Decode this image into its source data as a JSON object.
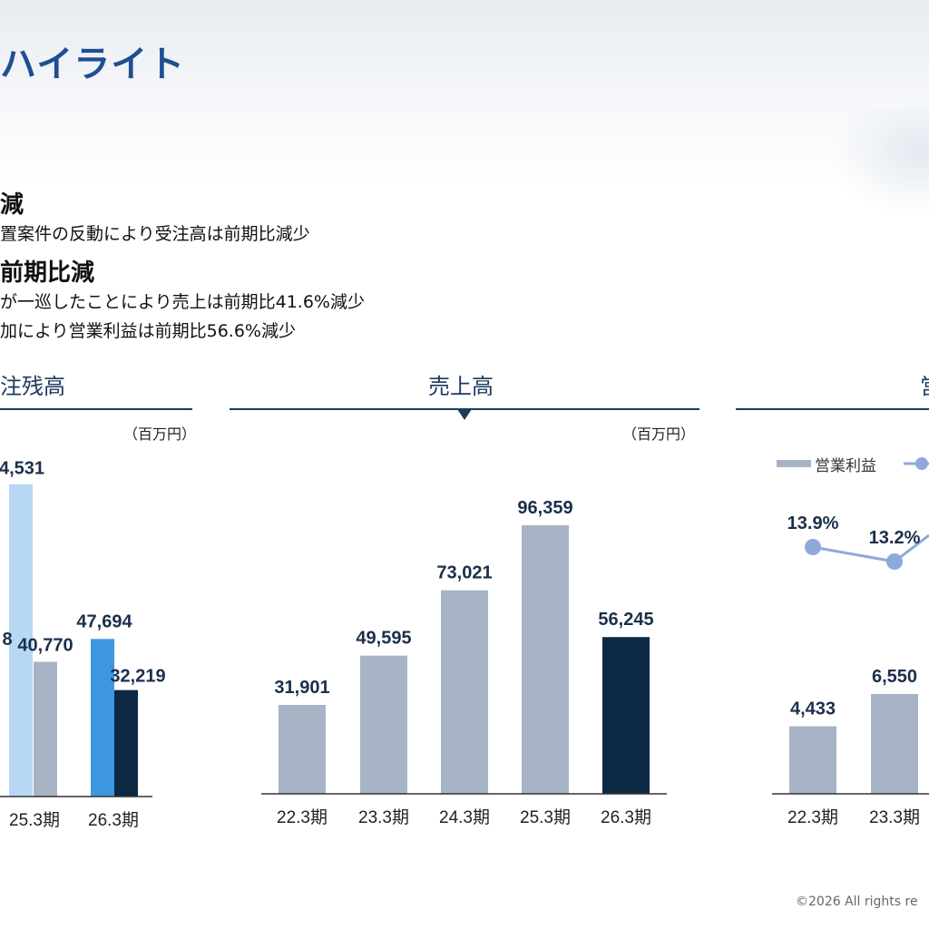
{
  "page": {
    "title": "ハイライト",
    "section1": {
      "heading": "減",
      "bullet": "置案件の反動により受注高は前期比減少"
    },
    "section2": {
      "heading": "前期比減",
      "bullets": [
        "が一巡したことにより売上は前期比41.6%減少",
        "加により営業利益は前期比56.6%減少"
      ]
    },
    "copyright": "©2026 All rights re"
  },
  "panels": {
    "left": {
      "title": "注残高",
      "unit": "（百万円）"
    },
    "middle": {
      "title": "売上高",
      "unit": "（百万円）"
    },
    "right": {
      "title": "営",
      "legend_bar": "営業利益"
    }
  },
  "colors": {
    "gray_bar": "#a7b4c5",
    "navy_bar": "#0b2942",
    "light_blue_bar": "#b7d7f5",
    "blue_bar": "#3f96e0",
    "line_series": "#8ea9db",
    "title_blue": "#1f4f93",
    "label_text": "#1b2f4a"
  },
  "chart_data": [
    {
      "type": "bar",
      "title": "注残高",
      "unit": "（百万円）",
      "categories": [
        "25.3期",
        "26.3期"
      ],
      "series": [
        {
          "values": [
            null,
            47694
          ],
          "color": "#b7d7f5"
        },
        {
          "values": [
            40770,
            32219
          ],
          "color": "#a7b4c5"
        }
      ],
      "partial_labels": [
        "4,531",
        "8"
      ],
      "partial_values": [
        94531,
        null
      ],
      "ylim": [
        0,
        100000
      ]
    },
    {
      "type": "bar",
      "title": "売上高",
      "unit": "（百万円）",
      "categories": [
        "22.3期",
        "23.3期",
        "24.3期",
        "25.3期",
        "26.3期"
      ],
      "values": [
        31901,
        49595,
        73021,
        96359,
        56245
      ],
      "ylim": [
        0,
        100000
      ]
    },
    {
      "type": "bar",
      "title": "営",
      "categories": [
        "22.3期",
        "23.3期"
      ],
      "series": [
        {
          "name": "営業利益",
          "values": [
            4433,
            6550
          ]
        }
      ],
      "line_values_pct": [
        13.9,
        13.2
      ],
      "line_labels": [
        "13.9%",
        "13.2%"
      ],
      "ylim": [
        0,
        15000
      ]
    }
  ]
}
